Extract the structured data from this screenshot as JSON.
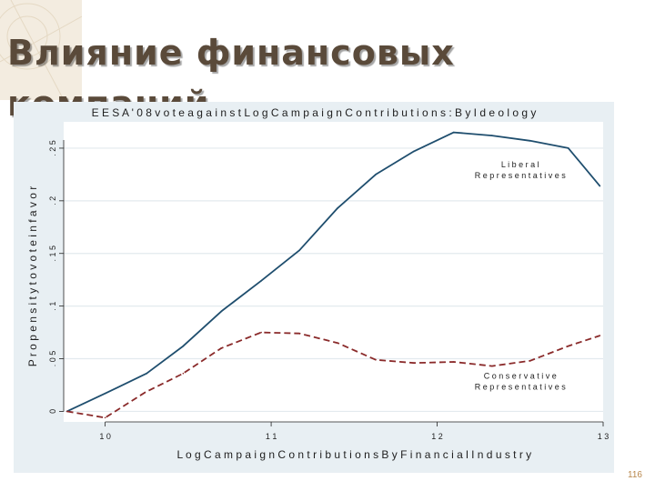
{
  "slide": {
    "title": "Влияние финансовых\nкомпаний",
    "number": "116"
  },
  "chart_data": {
    "type": "line",
    "title": "E E S A  ' 0 8  v o t e  a g a i n s t  L o g  C a m p a i g n  C o n t r i b u t i o n s :  B y  I d e o l o g y",
    "xlabel": "L o g  C a m p a i g n  C o n t r i b u t i o n s  B y  F i n a n c i a l  I n d u s t r y",
    "ylabel": "P r o p e n s i t y  t o  v o t e  i n  f a v o r",
    "xlim": [
      9.75,
      13.0
    ],
    "ylim": [
      -0.01,
      0.275
    ],
    "x_ticks": [
      {
        "value": 10,
        "label": "1 0"
      },
      {
        "value": 11,
        "label": "1 1"
      },
      {
        "value": 12,
        "label": "1 2"
      },
      {
        "value": 13,
        "label": "1 3"
      }
    ],
    "y_ticks": [
      {
        "value": 0,
        "label": "0"
      },
      {
        "value": 0.05,
        "label": ". 0 5"
      },
      {
        "value": 0.1,
        "label": ". 1"
      },
      {
        "value": 0.15,
        "label": ". 1 5"
      },
      {
        "value": 0.2,
        "label": ". 2"
      },
      {
        "value": 0.25,
        "label": ". 2 5"
      }
    ],
    "grid": true,
    "series": [
      {
        "name": "L i b e r a l\nR e p r e s e n t a t i v e s",
        "color": "#1f4e6e",
        "dash": "solid",
        "label_anchor": {
          "x": 12.5,
          "y": 0.232
        },
        "x": [
          9.77,
          10.0,
          10.25,
          10.47,
          10.7,
          10.94,
          11.17,
          11.4,
          11.63,
          11.86,
          12.1,
          12.33,
          12.56,
          12.79,
          12.98
        ],
        "y": [
          0.0,
          0.017,
          0.036,
          0.062,
          0.095,
          0.124,
          0.153,
          0.193,
          0.225,
          0.247,
          0.265,
          0.262,
          0.257,
          0.25,
          0.214
        ]
      },
      {
        "name": "C o n s e r v a t i v e\nR e p r e s e n t a t i v e s",
        "color": "#8a2a2a",
        "dash": "dashed",
        "label_anchor": {
          "x": 12.5,
          "y": 0.031
        },
        "x": [
          9.77,
          10.0,
          10.24,
          10.47,
          10.7,
          10.94,
          11.17,
          11.4,
          11.63,
          11.86,
          12.1,
          12.33,
          12.56,
          12.79,
          12.98
        ],
        "y": [
          0.0,
          -0.006,
          0.018,
          0.036,
          0.06,
          0.075,
          0.074,
          0.065,
          0.049,
          0.046,
          0.047,
          0.043,
          0.048,
          0.062,
          0.072
        ]
      }
    ]
  }
}
